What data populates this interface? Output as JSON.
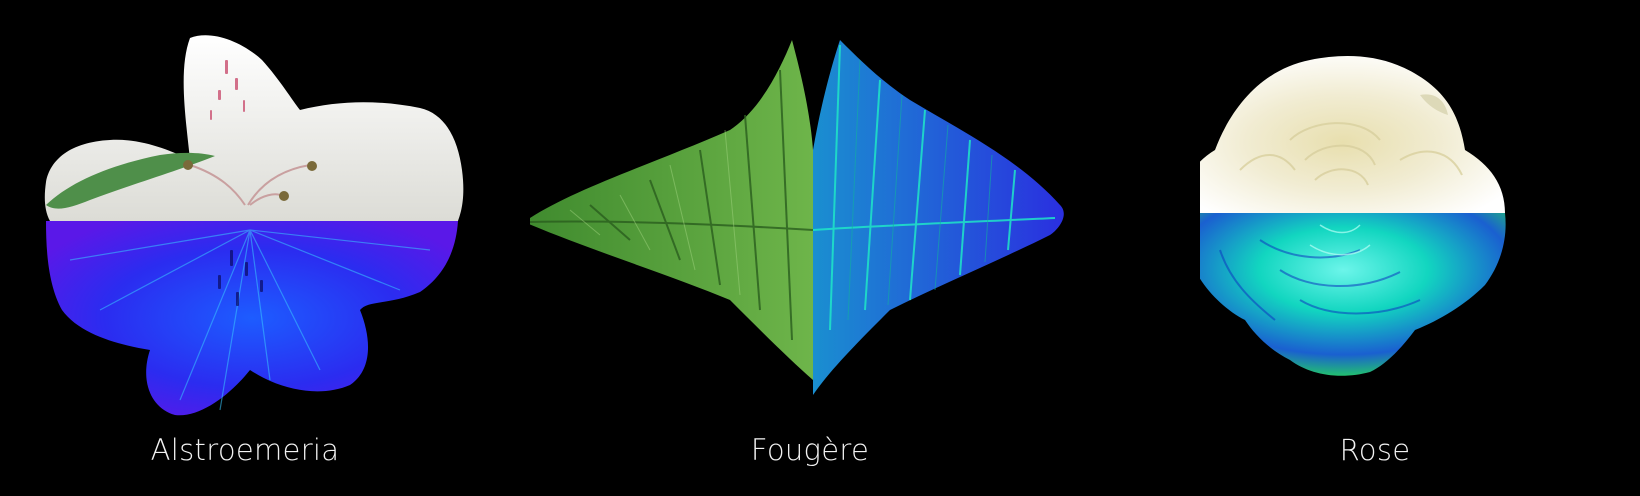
{
  "background_color": "#000000",
  "specimens": [
    {
      "label": "Alstroemeria",
      "visible_light_color": "#eeeeea",
      "uv_color": "#2b2cf0",
      "split": "horizontal"
    },
    {
      "label": "Fougère",
      "visible_light_color": "#4f9a38",
      "uv_color": "#1f2fd8",
      "uv_edge_color": "#1fe6c8",
      "split": "vertical"
    },
    {
      "label": "Rose",
      "visible_light_color": "#f1ecd2",
      "uv_color": "#12d6c0",
      "split": "horizontal"
    }
  ]
}
